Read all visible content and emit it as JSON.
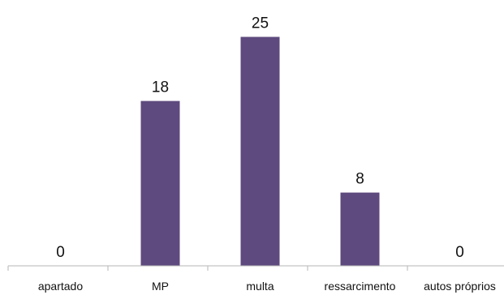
{
  "chart_data": {
    "type": "bar",
    "categories": [
      "apartado",
      "MP",
      "multa",
      "ressarcimento",
      "autos próprios"
    ],
    "values": [
      0,
      18,
      25,
      8,
      0
    ],
    "data_labels": [
      "0",
      "18",
      "25",
      "8",
      "0"
    ],
    "title": "",
    "xlabel": "",
    "ylabel": "",
    "ylim": [
      0,
      28
    ],
    "grid": false,
    "legend": "none",
    "bar_color": "#5e4a7e",
    "axis_color": "#b5b5b5"
  }
}
